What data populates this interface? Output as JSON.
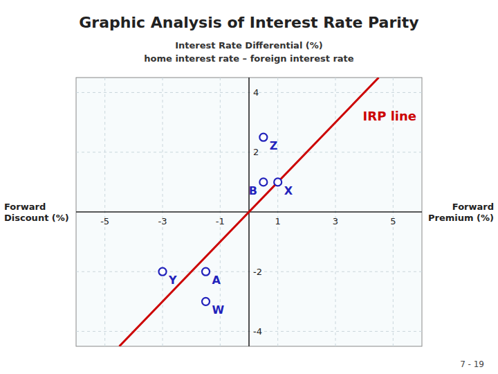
{
  "chart_data": {
    "type": "scatter",
    "title": "Graphic Analysis of Interest Rate Parity",
    "subtitle": [
      "Interest Rate Differential (%)",
      "home interest rate – foreign interest rate"
    ],
    "xlabel_left": "Forward\nDiscount (%)",
    "xlabel_right": "Forward\nPremium (%)",
    "footnote": "7 - 19",
    "xlim": [
      -6,
      6
    ],
    "ylim": [
      -4.5,
      4.5
    ],
    "xticks": [
      -5,
      -3,
      -1,
      1,
      3,
      5
    ],
    "yticks": [
      -4,
      -2,
      2,
      4
    ],
    "grid": true,
    "series": [
      {
        "name": "IRP line",
        "type": "line",
        "color": "#cc0000",
        "x": [
          -4.5,
          4.5
        ],
        "values": [
          -4.5,
          4.5
        ]
      },
      {
        "type": "scatter",
        "color": "#2222bb",
        "marker": "circle",
        "x": [
          0.5,
          0.5,
          1.0,
          -3.0,
          -1.5,
          -1.5
        ],
        "values": [
          2.5,
          1.0,
          1.0,
          -2.0,
          -2.0,
          -3.0
        ],
        "labels": [
          "Z",
          "B",
          "X",
          "Y",
          "A",
          "W"
        ]
      }
    ]
  }
}
